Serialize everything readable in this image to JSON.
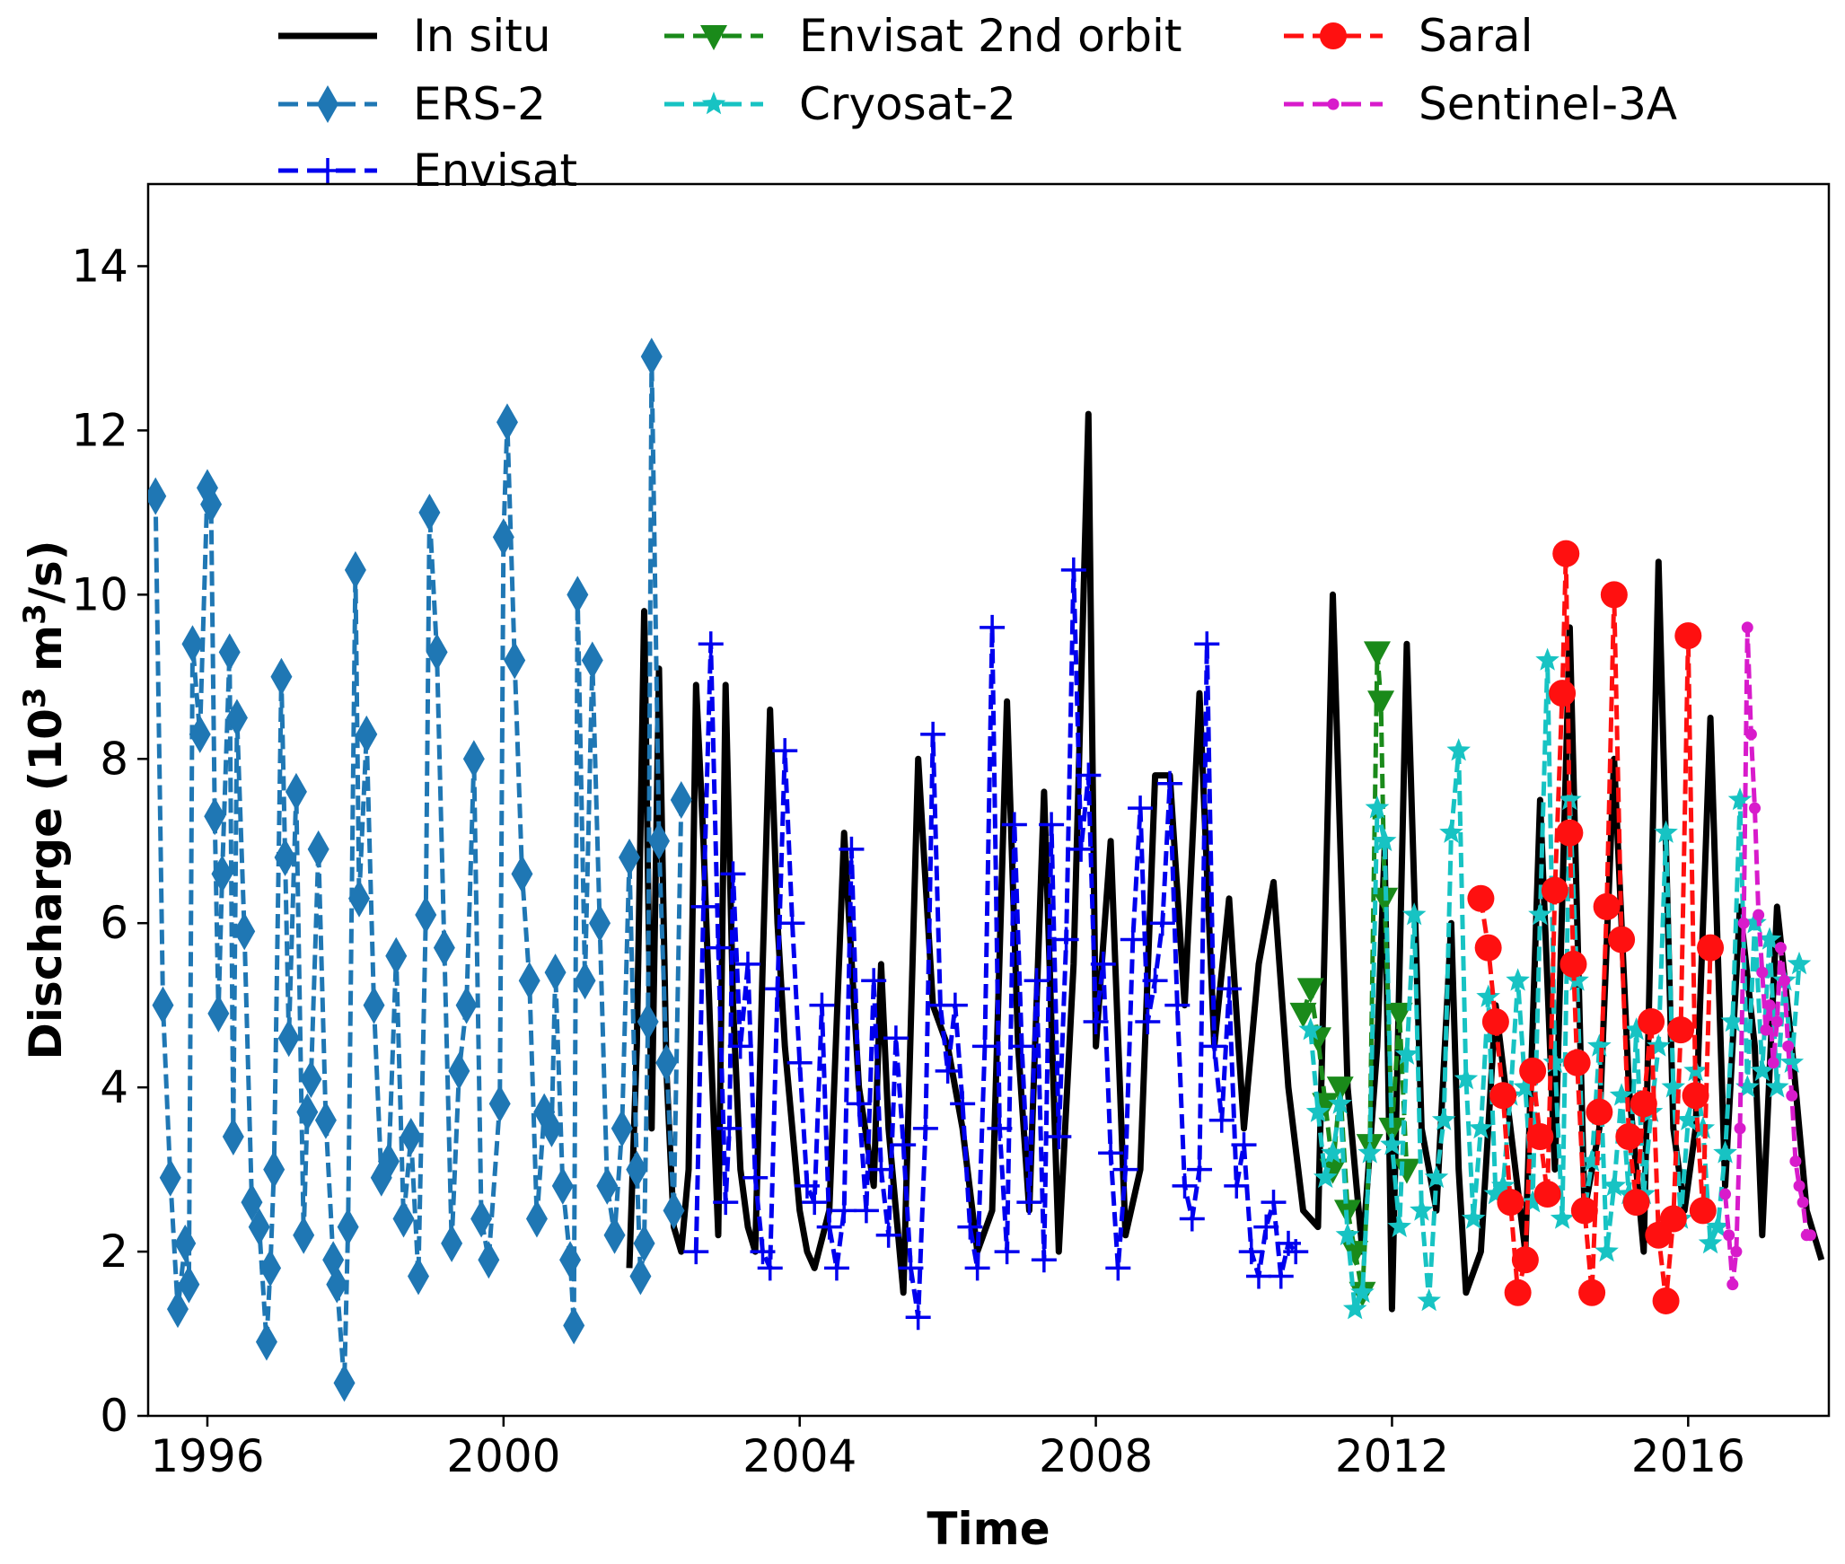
{
  "chart_data": {
    "type": "line",
    "title": "",
    "xlabel": "Time",
    "ylabel_main": "Discharge (10",
    "ylabel_sup": "3",
    "ylabel_mid": " m",
    "ylabel_sup2": "3",
    "ylabel_end": "/s)",
    "xlim": [
      1995.2,
      2017.9
    ],
    "ylim": [
      0,
      15
    ],
    "x_ticks": [
      1996,
      2000,
      2004,
      2008,
      2012,
      2016
    ],
    "x_tick_labels": [
      "1996",
      "2000",
      "2004",
      "2008",
      "2012",
      "2016"
    ],
    "y_ticks": [
      0,
      2,
      4,
      6,
      8,
      10,
      12,
      14
    ],
    "y_tick_labels": [
      "0",
      "2",
      "4",
      "6",
      "8",
      "10",
      "12",
      "14"
    ],
    "grid": false,
    "legend_position": "top",
    "series": [
      {
        "name": "In situ",
        "color": "#000000",
        "style": "solid",
        "marker": "none",
        "x": [
          2001.7,
          2001.8,
          2001.9,
          2002.0,
          2002.1,
          2002.2,
          2002.3,
          2002.4,
          2002.5,
          2002.6,
          2002.7,
          2002.8,
          2002.9,
          2003.0,
          2003.1,
          2003.2,
          2003.3,
          2003.4,
          2003.5,
          2003.6,
          2003.7,
          2003.8,
          2003.9,
          2004.0,
          2004.1,
          2004.2,
          2004.4,
          2004.6,
          2004.8,
          2005.0,
          2005.1,
          2005.2,
          2005.4,
          2005.6,
          2005.8,
          2006.0,
          2006.2,
          2006.4,
          2006.6,
          2006.8,
          2006.95,
          2007.1,
          2007.3,
          2007.5,
          2007.7,
          2007.9,
          2008.0,
          2008.2,
          2008.4,
          2008.6,
          2008.8,
          2009.0,
          2009.2,
          2009.4,
          2009.6,
          2009.8,
          2010.0,
          2010.2,
          2010.4,
          2010.6,
          2010.8,
          2011.0,
          2011.2,
          2011.4,
          2011.6,
          2011.8,
          2011.9,
          2012.0,
          2012.2,
          2012.4,
          2012.6,
          2012.8,
          2012.9,
          2013.0,
          2013.2,
          2013.4,
          2013.6,
          2013.8,
          2014.0,
          2014.2,
          2014.4,
          2014.6,
          2014.8,
          2015.0,
          2015.2,
          2015.4,
          2015.6,
          2015.8,
          2015.95,
          2016.1,
          2016.3,
          2016.5,
          2016.7,
          2016.9,
          2017.0,
          2017.2,
          2017.4,
          2017.6,
          2017.8
        ],
        "y": [
          1.8,
          4.5,
          9.8,
          3.5,
          9.1,
          4.2,
          2.3,
          2.0,
          3.0,
          8.9,
          7.0,
          4.5,
          2.2,
          8.9,
          5.0,
          3.0,
          2.3,
          2.0,
          5.5,
          8.6,
          6.0,
          4.5,
          3.5,
          2.5,
          2.0,
          1.8,
          2.5,
          7.1,
          4.0,
          2.8,
          5.5,
          3.5,
          1.5,
          8.0,
          5.0,
          4.5,
          3.5,
          2.0,
          2.5,
          8.7,
          4.5,
          2.5,
          7.6,
          2.0,
          5.5,
          12.2,
          4.5,
          7.0,
          2.2,
          3.0,
          7.8,
          7.8,
          5.0,
          8.8,
          4.5,
          6.3,
          3.5,
          5.5,
          6.5,
          4.0,
          2.5,
          2.3,
          10.0,
          4.0,
          2.0,
          4.5,
          6.9,
          1.3,
          9.4,
          3.5,
          2.5,
          6.0,
          3.0,
          1.5,
          2.0,
          5.0,
          3.5,
          2.0,
          7.5,
          3.0,
          9.6,
          2.5,
          3.5,
          8.0,
          4.0,
          2.0,
          10.4,
          3.5,
          2.5,
          3.5,
          8.5,
          2.8,
          6.2,
          4.5,
          2.2,
          6.2,
          4.5,
          2.5,
          1.9
        ]
      },
      {
        "name": "ERS-2",
        "color": "#1f77b4",
        "style": "dashed",
        "marker": "diamond",
        "x": [
          1995.3,
          1995.4,
          1995.5,
          1995.6,
          1995.7,
          1995.75,
          1995.8,
          1995.9,
          1996.0,
          1996.05,
          1996.1,
          1996.15,
          1996.2,
          1996.3,
          1996.35,
          1996.4,
          1996.5,
          1996.6,
          1996.7,
          1996.8,
          1996.85,
          1996.9,
          1997.0,
          1997.05,
          1997.1,
          1997.2,
          1997.3,
          1997.35,
          1997.4,
          1997.5,
          1997.6,
          1997.7,
          1997.75,
          1997.85,
          1997.9,
          1998.0,
          1998.05,
          1998.15,
          1998.25,
          1998.35,
          1998.45,
          1998.55,
          1998.65,
          1998.75,
          1998.85,
          1998.95,
          1999.0,
          1999.1,
          1999.2,
          1999.3,
          1999.4,
          1999.5,
          1999.6,
          1999.7,
          1999.8,
          1999.95,
          2000.0,
          2000.05,
          2000.15,
          2000.25,
          2000.35,
          2000.45,
          2000.55,
          2000.65,
          2000.7,
          2000.8,
          2000.9,
          2000.95,
          2001.0,
          2001.1,
          2001.2,
          2001.3,
          2001.4,
          2001.5,
          2001.6,
          2001.7,
          2001.8,
          2001.85,
          2001.9,
          2001.95,
          2002.0,
          2002.1,
          2002.2,
          2002.3,
          2002.4
        ],
        "y": [
          11.2,
          5.0,
          2.9,
          1.3,
          2.1,
          1.6,
          9.4,
          8.3,
          11.3,
          11.1,
          7.3,
          4.9,
          6.6,
          9.3,
          3.4,
          8.5,
          5.9,
          2.6,
          2.3,
          0.9,
          1.8,
          3.0,
          9.0,
          6.8,
          4.6,
          7.6,
          2.2,
          3.7,
          4.1,
          6.9,
          3.6,
          1.9,
          1.6,
          0.4,
          2.3,
          10.3,
          6.3,
          8.3,
          5.0,
          2.9,
          3.1,
          5.6,
          2.4,
          3.4,
          1.7,
          6.1,
          11.0,
          9.3,
          5.7,
          2.1,
          4.2,
          5.0,
          8.0,
          2.4,
          1.9,
          3.8,
          10.7,
          12.1,
          9.2,
          6.6,
          5.3,
          2.4,
          3.7,
          3.5,
          5.4,
          2.8,
          1.9,
          1.1,
          10.0,
          5.3,
          9.2,
          6.0,
          2.8,
          2.2,
          3.5,
          6.8,
          3.0,
          1.7,
          2.1,
          4.8,
          12.9,
          7.0,
          4.3,
          2.5,
          7.5
        ]
      },
      {
        "name": "Envisat",
        "color": "#0000ee",
        "style": "dashed",
        "marker": "plus",
        "x": [
          2002.6,
          2002.7,
          2002.8,
          2002.9,
          2003.0,
          2003.05,
          2003.1,
          2003.2,
          2003.3,
          2003.4,
          2003.5,
          2003.6,
          2003.7,
          2003.8,
          2003.9,
          2004.0,
          2004.1,
          2004.2,
          2004.3,
          2004.4,
          2004.5,
          2004.6,
          2004.7,
          2004.8,
          2004.9,
          2005.0,
          2005.1,
          2005.2,
          2005.3,
          2005.4,
          2005.5,
          2005.6,
          2005.7,
          2005.8,
          2005.9,
          2006.0,
          2006.1,
          2006.2,
          2006.3,
          2006.4,
          2006.5,
          2006.6,
          2006.7,
          2006.8,
          2006.9,
          2007.0,
          2007.1,
          2007.2,
          2007.3,
          2007.4,
          2007.5,
          2007.6,
          2007.7,
          2007.8,
          2007.9,
          2008.0,
          2008.1,
          2008.2,
          2008.3,
          2008.4,
          2008.5,
          2008.6,
          2008.7,
          2008.8,
          2008.9,
          2009.0,
          2009.1,
          2009.2,
          2009.3,
          2009.4,
          2009.5,
          2009.6,
          2009.7,
          2009.8,
          2009.9,
          2010.0,
          2010.1,
          2010.2,
          2010.3,
          2010.4,
          2010.5,
          2010.6,
          2010.7
        ],
        "y": [
          2.0,
          6.2,
          9.4,
          5.7,
          2.6,
          3.5,
          6.6,
          4.5,
          5.5,
          2.9,
          2.0,
          1.8,
          5.2,
          8.1,
          6.0,
          4.3,
          2.8,
          2.6,
          5.0,
          2.3,
          1.8,
          2.5,
          6.9,
          3.8,
          2.5,
          5.3,
          3.0,
          2.2,
          4.6,
          3.3,
          1.8,
          1.2,
          3.5,
          8.3,
          5.0,
          4.2,
          5.0,
          3.8,
          2.3,
          1.8,
          4.5,
          9.6,
          3.5,
          2.0,
          7.2,
          4.5,
          2.6,
          5.3,
          1.9,
          7.2,
          3.4,
          5.8,
          10.3,
          6.9,
          7.8,
          4.8,
          5.5,
          3.2,
          1.8,
          3.0,
          5.8,
          7.4,
          4.8,
          5.3,
          6.0,
          7.7,
          5.0,
          2.8,
          2.4,
          3.0,
          9.4,
          4.5,
          3.6,
          5.2,
          2.8,
          3.3,
          2.0,
          1.7,
          2.3,
          2.6,
          1.7,
          2.1,
          2.0
        ]
      },
      {
        "name": "Envisat 2nd orbit",
        "color": "#1a8a1a",
        "style": "dashed",
        "marker": "triangle-down",
        "x": [
          2010.8,
          2010.9,
          2011.0,
          2011.1,
          2011.2,
          2011.3,
          2011.4,
          2011.5,
          2011.6,
          2011.7,
          2011.8,
          2011.85,
          2011.9,
          2012.0,
          2012.1,
          2012.2
        ],
        "y": [
          4.9,
          5.2,
          4.6,
          3.8,
          3.0,
          4.0,
          2.5,
          2.0,
          1.5,
          3.3,
          9.3,
          8.7,
          6.3,
          3.5,
          4.9,
          3.0
        ]
      },
      {
        "name": "Cryosat-2",
        "color": "#17c3c3",
        "style": "dashed",
        "marker": "star",
        "x": [
          2010.9,
          2011.0,
          2011.1,
          2011.2,
          2011.3,
          2011.4,
          2011.5,
          2011.6,
          2011.7,
          2011.8,
          2011.9,
          2012.0,
          2012.1,
          2012.2,
          2012.3,
          2012.4,
          2012.5,
          2012.6,
          2012.7,
          2012.8,
          2012.9,
          2013.0,
          2013.1,
          2013.2,
          2013.3,
          2013.4,
          2013.5,
          2013.6,
          2013.7,
          2013.8,
          2013.9,
          2014.0,
          2014.1,
          2014.2,
          2014.3,
          2014.4,
          2014.5,
          2014.6,
          2014.7,
          2014.8,
          2014.9,
          2015.0,
          2015.1,
          2015.2,
          2015.3,
          2015.4,
          2015.5,
          2015.6,
          2015.7,
          2015.8,
          2015.9,
          2016.0,
          2016.1,
          2016.2,
          2016.3,
          2016.4,
          2016.5,
          2016.6,
          2016.7,
          2016.8,
          2016.9,
          2017.0,
          2017.1,
          2017.2,
          2017.3,
          2017.4,
          2017.5
        ],
        "y": [
          4.7,
          3.7,
          2.9,
          3.2,
          3.8,
          2.2,
          1.3,
          1.5,
          3.2,
          7.4,
          7.0,
          3.3,
          2.3,
          4.4,
          6.1,
          2.5,
          1.4,
          2.9,
          3.6,
          7.1,
          8.1,
          4.1,
          2.4,
          3.5,
          5.1,
          2.7,
          2.8,
          3.9,
          5.3,
          4.0,
          2.6,
          6.1,
          9.2,
          4.3,
          2.4,
          7.5,
          5.3,
          2.5,
          3.1,
          4.5,
          2.0,
          2.8,
          3.9,
          2.7,
          4.7,
          2.7,
          3.7,
          4.5,
          7.1,
          4.0,
          2.4,
          3.6,
          4.2,
          3.5,
          2.1,
          2.3,
          3.2,
          4.8,
          7.5,
          4.0,
          6.0,
          4.2,
          5.8,
          4.0,
          5.3,
          4.3,
          5.5
        ]
      },
      {
        "name": "Saral",
        "color": "#ff1010",
        "style": "dashed",
        "marker": "circle",
        "x": [
          2013.2,
          2013.3,
          2013.4,
          2013.5,
          2013.6,
          2013.7,
          2013.8,
          2013.9,
          2014.0,
          2014.1,
          2014.2,
          2014.3,
          2014.35,
          2014.4,
          2014.45,
          2014.5,
          2014.6,
          2014.7,
          2014.8,
          2014.9,
          2015.0,
          2015.1,
          2015.2,
          2015.3,
          2015.4,
          2015.5,
          2015.6,
          2015.7,
          2015.8,
          2015.9,
          2016.0,
          2016.1,
          2016.2,
          2016.3
        ],
        "y": [
          6.3,
          5.7,
          4.8,
          3.9,
          2.6,
          1.5,
          1.9,
          4.2,
          3.4,
          2.7,
          6.4,
          8.8,
          10.5,
          7.1,
          5.5,
          4.3,
          2.5,
          1.5,
          3.7,
          6.2,
          10.0,
          5.8,
          3.4,
          2.6,
          3.8,
          4.8,
          2.2,
          1.4,
          2.4,
          4.7,
          9.5,
          3.9,
          2.5,
          5.7
        ]
      },
      {
        "name": "Sentinel-3A",
        "color": "#d81bcb",
        "style": "dashed",
        "marker": "dot",
        "x": [
          2016.5,
          2016.55,
          2016.6,
          2016.65,
          2016.7,
          2016.75,
          2016.8,
          2016.85,
          2016.9,
          2016.95,
          2017.0,
          2017.05,
          2017.1,
          2017.15,
          2017.2,
          2017.25,
          2017.3,
          2017.35,
          2017.4,
          2017.45,
          2017.5,
          2017.55,
          2017.6,
          2017.65
        ],
        "y": [
          2.7,
          2.2,
          1.6,
          2.0,
          3.5,
          6.0,
          9.6,
          8.3,
          7.4,
          6.1,
          5.4,
          4.7,
          5.0,
          4.3,
          4.8,
          5.7,
          5.3,
          4.5,
          3.9,
          3.1,
          2.8,
          2.6,
          2.2,
          2.2
        ]
      }
    ]
  }
}
